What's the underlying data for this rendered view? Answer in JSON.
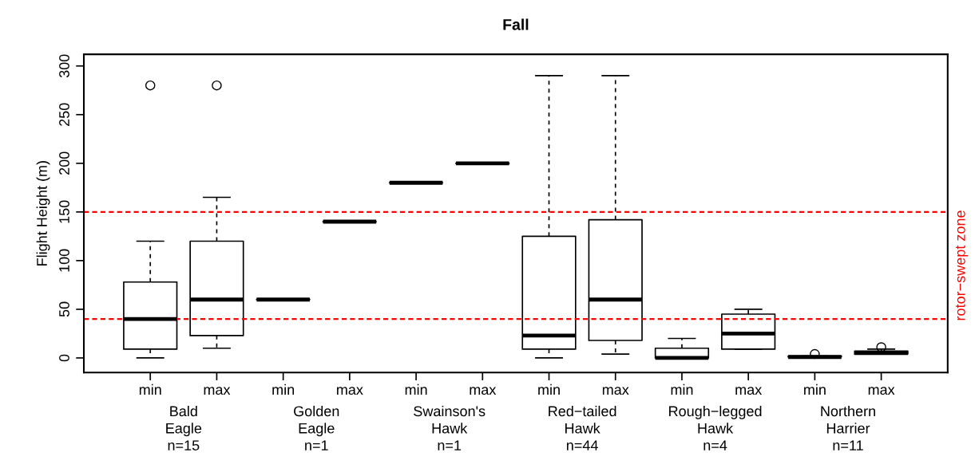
{
  "chart_data": {
    "type": "box",
    "title": "Fall",
    "ylabel": "Flight Height (m)",
    "categories": [
      "min",
      "max",
      "min",
      "max",
      "min",
      "max",
      "min",
      "max",
      "min",
      "max",
      "min",
      "max"
    ],
    "boxes": [
      {
        "low": 0,
        "q1": 9,
        "median": 40,
        "q3": 78,
        "high": 120,
        "outliers": [
          280
        ]
      },
      {
        "low": 10,
        "q1": 23,
        "median": 60,
        "q3": 120,
        "high": 165,
        "outliers": [
          280
        ]
      },
      {
        "low": 60,
        "q1": 60,
        "median": 60,
        "q3": 60,
        "high": 60
      },
      {
        "low": 140,
        "q1": 140,
        "median": 140,
        "q3": 140,
        "high": 140
      },
      {
        "low": 180,
        "q1": 180,
        "median": 180,
        "q3": 180,
        "high": 180
      },
      {
        "low": 200,
        "q1": 200,
        "median": 200,
        "q3": 200,
        "high": 200
      },
      {
        "low": 0,
        "q1": 9,
        "median": 23,
        "q3": 125,
        "high": 290
      },
      {
        "low": 4,
        "q1": 18,
        "median": 60,
        "q3": 142,
        "high": 290
      },
      {
        "low": 0,
        "q1": 0,
        "median": 0,
        "q3": 10,
        "high": 20
      },
      {
        "low": 9,
        "q1": 9,
        "median": 25,
        "q3": 45,
        "high": 50
      },
      {
        "low": 0,
        "q1": 1,
        "median": 1,
        "q3": 2,
        "high": 2,
        "outliers": [
          4
        ]
      },
      {
        "low": 4,
        "q1": 4,
        "median": 5,
        "q3": 7,
        "high": 9,
        "outliers": [
          11
        ]
      }
    ],
    "ylim": [
      -15,
      312
    ],
    "yticks": [
      0,
      50,
      100,
      150,
      200,
      250,
      300
    ],
    "grid": false,
    "ref_lines": [
      {
        "axis": "y",
        "value": 40,
        "color": "#ff0000",
        "line_style": "dashed"
      },
      {
        "axis": "y",
        "value": 150,
        "color": "#ff0000",
        "line_style": "dashed"
      }
    ],
    "annotations": [
      "Bald\nEagle\nn=15",
      "Golden\nEagle\nn=1",
      "Swainson's\nHawk\nn=1",
      "Red−tailed\nHawk\nn=44",
      "Rough−legged\nHawk\nn=4",
      "Northern\nHarrier\nn=11",
      "rotor−swept zone"
    ]
  }
}
